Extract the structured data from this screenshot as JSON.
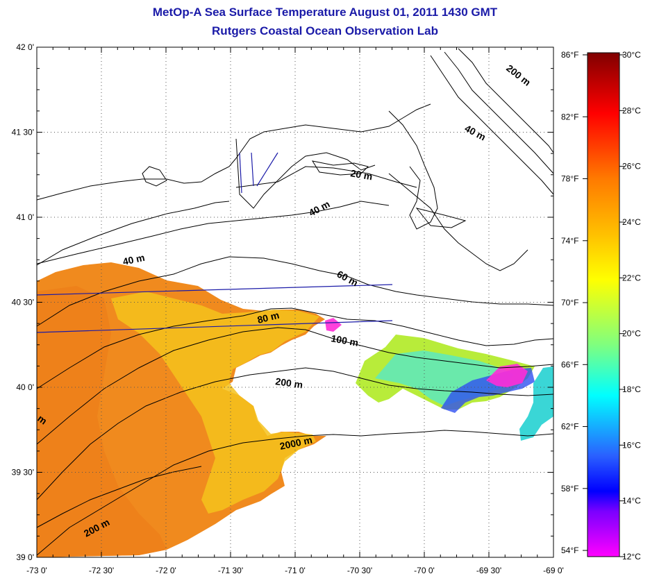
{
  "title_line1": "MetOp-A Sea Surface Temperature August 01, 2011 1430 GMT",
  "title_line2": "Rutgers Coastal Ocean Observation Lab",
  "map": {
    "lon_range": [
      -73.0,
      -69.0
    ],
    "lat_range": [
      39.0,
      42.0
    ],
    "x_tick_labels": [
      "-73 0'",
      "-72 30'",
      "-72 0'",
      "-71 30'",
      "-71 0'",
      "-70 30'",
      "-70 0'",
      "-69 30'",
      "-69 0'"
    ],
    "y_tick_labels": [
      "39 0'",
      "39 30'",
      "40 0'",
      "40 30'",
      "41 0'",
      "41 30'",
      "42 0'"
    ],
    "grid": "dotted",
    "contour_labels": [
      "200 m",
      "40 m",
      "20 m",
      "40 m",
      "40 m",
      "60 m",
      "80 m",
      "100 m",
      "200 m",
      "2000 m",
      "200 m",
      "m"
    ]
  },
  "colorbar": {
    "celsius_labels": [
      "30°C",
      "28°C",
      "26°C",
      "24°C",
      "22°C",
      "20°C",
      "18°C",
      "16°C",
      "14°C",
      "12°C"
    ],
    "fahrenheit_labels": [
      "86°F",
      "82°F",
      "78°F",
      "74°F",
      "70°F",
      "66°F",
      "62°F",
      "58°F",
      "54°F"
    ],
    "celsius_range": [
      12,
      30
    ],
    "colors": {
      "hot": "#800000",
      "red": "#ff0000",
      "orange": "#ff7a00",
      "yellow": "#ffff00",
      "green": "#7fff7f",
      "cyan": "#00ffff",
      "blue": "#0000ff",
      "purple": "#7a00ff",
      "magenta": "#ff00ff"
    }
  }
}
